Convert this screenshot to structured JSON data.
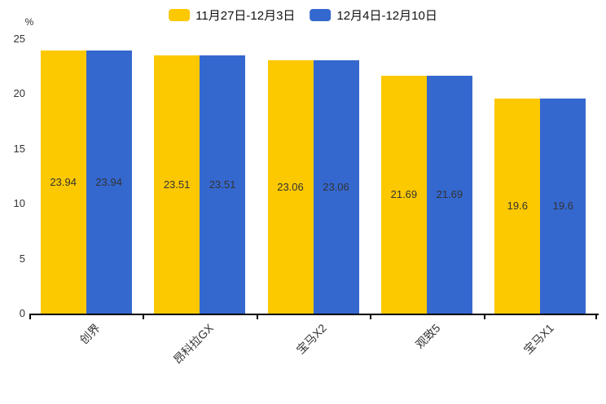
{
  "chart_data": {
    "type": "bar",
    "title": "",
    "unit": "%",
    "categories": [
      "创界",
      "昂科拉GX",
      "宝马X2",
      "观致5",
      "宝马X1"
    ],
    "series": [
      {
        "name": "11月27日-12月3日",
        "color": "#FCC800",
        "values": [
          23.94,
          23.51,
          23.06,
          21.69,
          19.6
        ]
      },
      {
        "name": "12月4日-12月10日",
        "color": "#3568CE",
        "values": [
          23.94,
          23.51,
          23.06,
          21.69,
          19.6
        ]
      }
    ],
    "value_labels": [
      [
        "23.94",
        "23.51",
        "23.06",
        "21.69",
        "19.6"
      ],
      [
        "23.94",
        "23.51",
        "23.06",
        "21.69",
        "19.6"
      ]
    ],
    "ylim": [
      0,
      25
    ],
    "yticks": [
      0,
      5,
      10,
      15,
      20,
      25
    ],
    "grid": false,
    "legend_position": "top",
    "value_label_position": "middle"
  },
  "colors": {
    "background": "#ffffff",
    "axis": "#000000",
    "tick_label": "#333333",
    "value_label": "#333333"
  }
}
